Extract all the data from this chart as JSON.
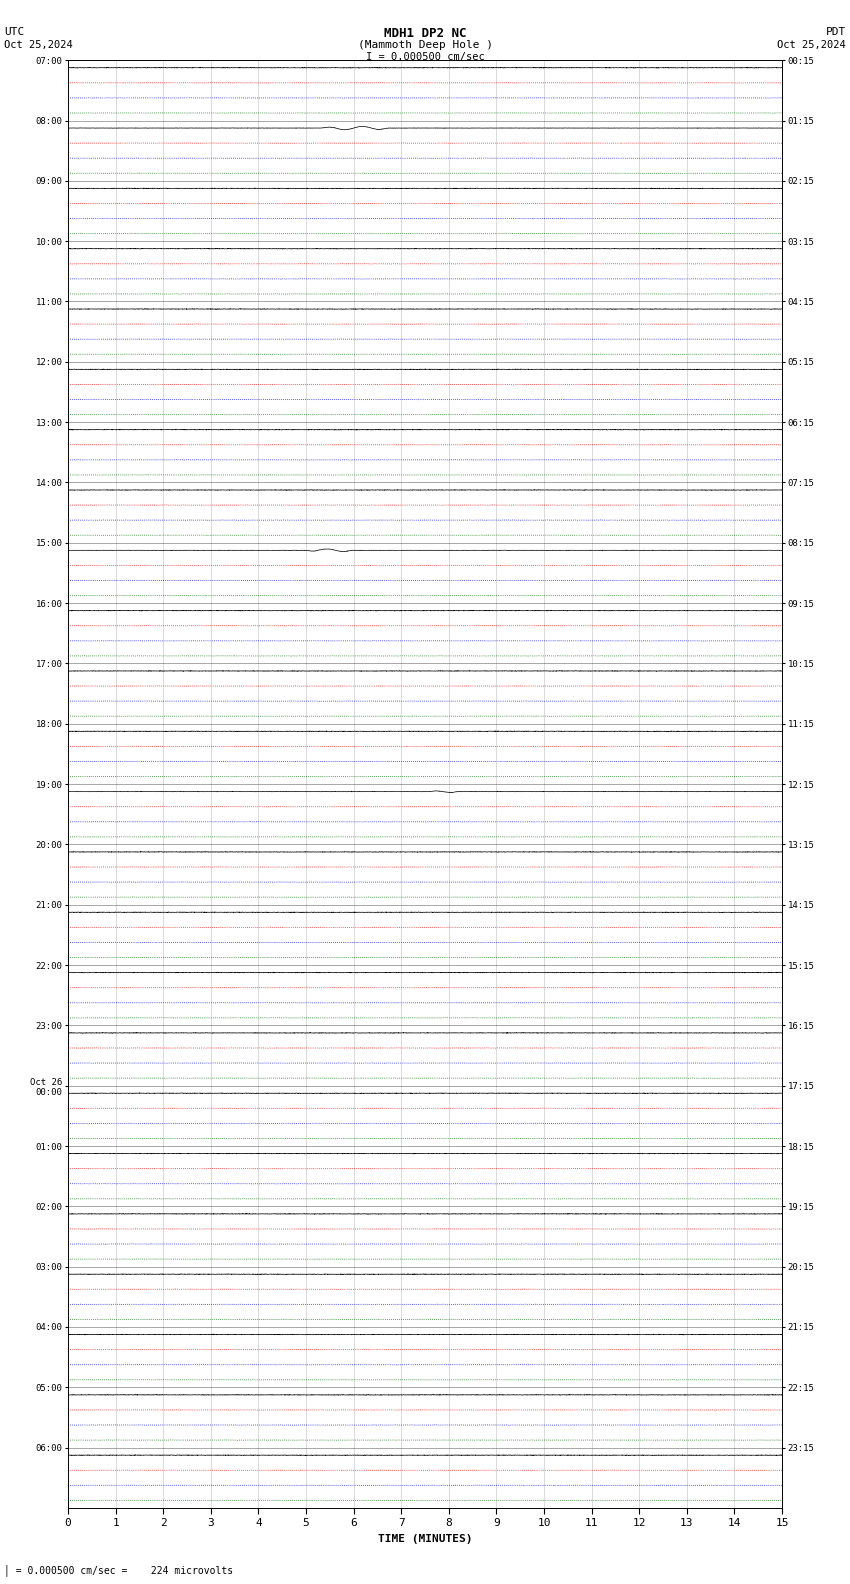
{
  "title_line1": "MDH1 DP2 NC",
  "title_line2": "(Mammoth Deep Hole )",
  "title_line3": "I = 0.000500 cm/sec",
  "left_top_label": "UTC",
  "left_date_label": "Oct 25,2024",
  "right_top_label": "PDT",
  "right_date_label": "Oct 25,2024",
  "bottom_label": "= 0.000500 cm/sec =    224 microvolts",
  "xlabel": "TIME (MINUTES)",
  "xmin": 0,
  "xmax": 15,
  "xticks": [
    0,
    1,
    2,
    3,
    4,
    5,
    6,
    7,
    8,
    9,
    10,
    11,
    12,
    13,
    14,
    15
  ],
  "num_hours": 24,
  "background_color": "#ffffff",
  "trace_color": "#000000",
  "red_line_color": "#dd0000",
  "blue_line_color": "#0000cc",
  "green_line_color": "#006600",
  "grid_color": "#aaaaaa",
  "left_utc_labels": [
    "07:00",
    "08:00",
    "09:00",
    "10:00",
    "11:00",
    "12:00",
    "13:00",
    "14:00",
    "15:00",
    "16:00",
    "17:00",
    "18:00",
    "19:00",
    "20:00",
    "21:00",
    "22:00",
    "23:00",
    "Oct 26\n00:00",
    "01:00",
    "02:00",
    "03:00",
    "04:00",
    "05:00",
    "06:00"
  ],
  "right_pdt_labels": [
    "00:15",
    "01:15",
    "02:15",
    "03:15",
    "04:15",
    "05:15",
    "06:15",
    "07:15",
    "08:15",
    "09:15",
    "10:15",
    "11:15",
    "12:15",
    "13:15",
    "14:15",
    "15:15",
    "16:15",
    "17:15",
    "18:15",
    "19:15",
    "20:15",
    "21:15",
    "22:15",
    "23:15"
  ],
  "events": {
    "1": [
      5.3,
      6.8,
      0.3
    ],
    "8": [
      5.0,
      6.0,
      0.25
    ],
    "12": [
      7.6,
      8.2,
      0.15
    ]
  },
  "sub_lines_per_hour": 3,
  "lines_per_hour": 4,
  "noise_scale": 0.008,
  "ref_noise_scale": 0.005
}
